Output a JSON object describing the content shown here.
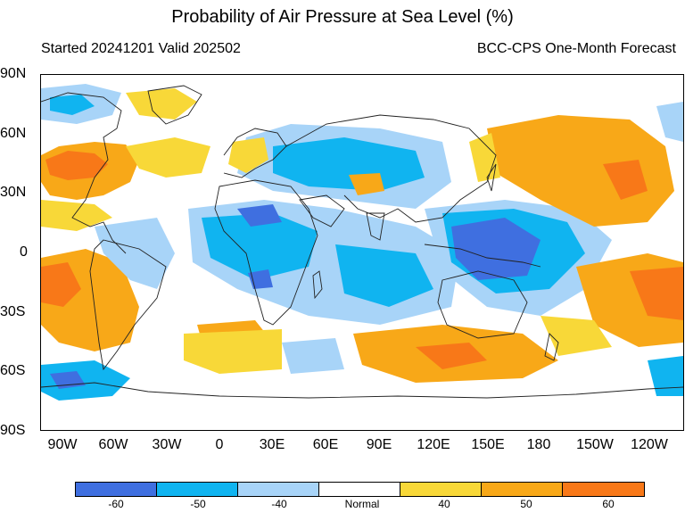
{
  "title": "Probability of Air Pressure at Sea Level (%)",
  "subtitle_left": "Started 20241201  Valid 202502",
  "subtitle_right": "BCC-CPS One-Month Forecast",
  "lat_labels": [
    "90N",
    "60N",
    "30N",
    "0",
    "30S",
    "60S",
    "90S"
  ],
  "lon_labels": [
    "90W",
    "60W",
    "30W",
    "0",
    "30E",
    "60E",
    "90E",
    "120E",
    "150E",
    "180",
    "150W",
    "120W"
  ],
  "legend": {
    "labels": [
      "-60",
      "-50",
      "-40",
      "Normal",
      "40",
      "50",
      "60"
    ],
    "colors": [
      "#3f6fe0",
      "#10b4f0",
      "#a8d4f8",
      "#ffffff",
      "#f8d838",
      "#f8a818",
      "#f87818"
    ]
  }
}
